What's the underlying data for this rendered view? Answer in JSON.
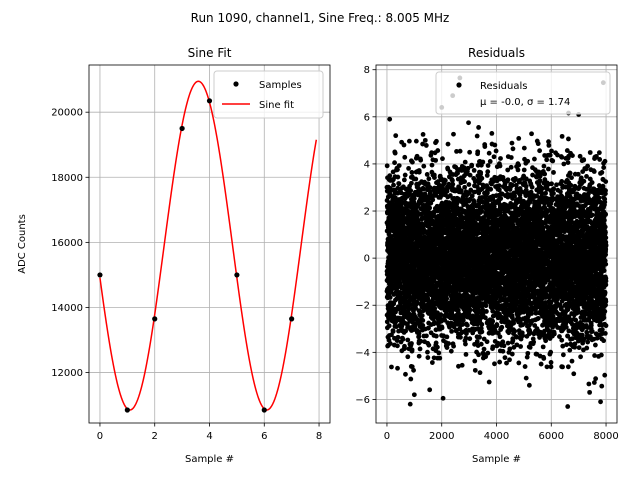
{
  "figure": {
    "suptitle": "Run 1090, channel1, Sine Freq.: 8.005 MHz"
  },
  "chart_data": [
    {
      "type": "line",
      "title": "Sine Fit",
      "xlabel": "Sample #",
      "ylabel": "ADC Counts",
      "xlim": [
        -0.4,
        8.4
      ],
      "ylim": [
        10450,
        21450
      ],
      "xticks": [
        0,
        2,
        4,
        6,
        8
      ],
      "yticks": [
        12000,
        14000,
        16000,
        18000,
        20000
      ],
      "grid": true,
      "legend": {
        "placement": "top-right",
        "entries": [
          "Samples",
          "Sine fit"
        ]
      },
      "series": [
        {
          "name": "Samples",
          "kind": "scatter",
          "color": "#000000",
          "x": [
            0,
            1,
            2,
            3,
            4,
            5,
            6,
            7
          ],
          "y": [
            15000,
            10850,
            13650,
            19500,
            20350,
            15000,
            10850,
            13650
          ]
        },
        {
          "name": "Sine fit",
          "kind": "line",
          "color": "#ff0000",
          "model": {
            "offset": 15900,
            "amplitude": 5050,
            "cycles_per_sample": 0.2,
            "phase": 3.3387
          },
          "x_range": [
            0,
            7.9
          ]
        }
      ]
    },
    {
      "type": "scatter",
      "title": "Residuals",
      "xlabel": "Sample #",
      "xlim": [
        -400,
        8400
      ],
      "ylim": [
        -7.0,
        8.2
      ],
      "xticks": [
        0,
        2000,
        4000,
        6000,
        8000
      ],
      "yticks": [
        -6,
        -4,
        -2,
        0,
        2,
        4,
        6,
        8
      ],
      "grid": true,
      "legend": {
        "placement": "top-right",
        "entries": [
          "Residuals",
          "μ = -0.0, σ = 1.74"
        ]
      },
      "series": [
        {
          "name": "Residuals",
          "color": "#000000",
          "n_points": 8000,
          "x_range": [
            0,
            7999
          ],
          "mean": 0.0,
          "sigma": 1.74,
          "outliers": [
            {
              "x": 7900,
              "y": 7.45
            },
            {
              "x": 2400,
              "y": 6.9
            },
            {
              "x": 2000,
              "y": 6.4
            },
            {
              "x": 7000,
              "y": 6.1
            },
            {
              "x": 100,
              "y": 5.9
            },
            {
              "x": 1400,
              "y": 5.0
            },
            {
              "x": 850,
              "y": -6.2
            },
            {
              "x": 6600,
              "y": -6.3
            },
            {
              "x": 7800,
              "y": -6.1
            },
            {
              "x": 2050,
              "y": -5.95
            },
            {
              "x": 1000,
              "y": -5.8
            },
            {
              "x": 5200,
              "y": -5.4
            },
            {
              "x": 7400,
              "y": -5.7
            }
          ]
        }
      ]
    }
  ]
}
